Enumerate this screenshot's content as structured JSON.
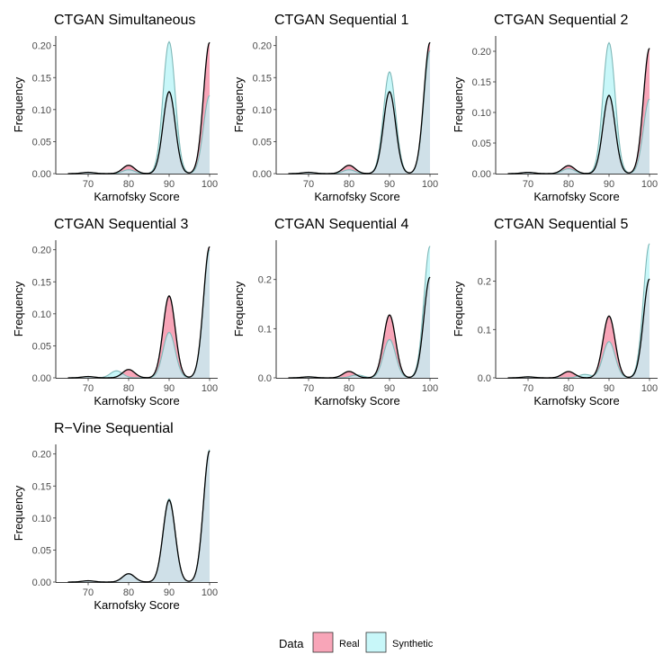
{
  "figure": {
    "legend": {
      "title": "Data",
      "position": "bottom",
      "items": [
        {
          "label": "Real",
          "fill": "#F8A5B8"
        },
        {
          "label": "Synthetic",
          "fill": "#C8F7F9"
        }
      ]
    },
    "colors": {
      "real": "#F8A5B8",
      "synthetic": "#C8F7F9",
      "overlap": "#CFE0E8",
      "line": "#000000",
      "synthetic_line": "#7FB8B8"
    }
  },
  "chart_data": [
    {
      "type": "area",
      "title": "CTGAN Simultaneous",
      "xlabel": "Karnofsky Score",
      "ylabel": "Frequency",
      "xlim": [
        62,
        102
      ],
      "xticks": [
        70,
        80,
        90,
        100
      ],
      "ylim": [
        0,
        0.215
      ],
      "yticks": [
        "0.00",
        "0.05",
        "0.10",
        "0.15",
        "0.20"
      ],
      "series": [
        {
          "name": "Real",
          "peaks": [
            [
              70,
              0.002
            ],
            [
              80,
              0.013
            ],
            [
              90,
              0.128
            ],
            [
              100,
              0.205
            ]
          ]
        },
        {
          "name": "Synthetic",
          "peaks": [
            [
              70,
              0.002
            ],
            [
              80,
              0.006
            ],
            [
              90,
              0.206
            ],
            [
              100,
              0.122
            ]
          ]
        }
      ]
    },
    {
      "type": "area",
      "title": "CTGAN Sequential 1",
      "xlabel": "Karnofsky Score",
      "ylabel": "Frequency",
      "xlim": [
        62,
        102
      ],
      "xticks": [
        70,
        80,
        90,
        100
      ],
      "ylim": [
        0,
        0.215
      ],
      "yticks": [
        "0.00",
        "0.05",
        "0.10",
        "0.15",
        "0.20"
      ],
      "series": [
        {
          "name": "Real",
          "peaks": [
            [
              70,
              0.002
            ],
            [
              80,
              0.013
            ],
            [
              90,
              0.128
            ],
            [
              100,
              0.205
            ]
          ]
        },
        {
          "name": "Synthetic",
          "peaks": [
            [
              70,
              0.002
            ],
            [
              80,
              0.006
            ],
            [
              90,
              0.159
            ],
            [
              100,
              0.192
            ]
          ]
        }
      ]
    },
    {
      "type": "area",
      "title": "CTGAN Sequential 2",
      "xlabel": "Karnofsky Score",
      "ylabel": "Frequency",
      "xlim": [
        62,
        102
      ],
      "xticks": [
        70,
        80,
        90,
        100
      ],
      "ylim": [
        0,
        0.225
      ],
      "yticks": [
        "0.00",
        "0.05",
        "0.10",
        "0.15",
        "0.20"
      ],
      "series": [
        {
          "name": "Real",
          "peaks": [
            [
              70,
              0.002
            ],
            [
              80,
              0.013
            ],
            [
              90,
              0.128
            ],
            [
              100,
              0.205
            ]
          ]
        },
        {
          "name": "Synthetic",
          "peaks": [
            [
              70,
              0.002
            ],
            [
              80,
              0.008
            ],
            [
              90,
              0.214
            ],
            [
              100,
              0.122
            ]
          ]
        }
      ]
    },
    {
      "type": "area",
      "title": "CTGAN Sequential 3",
      "xlabel": "Karnofsky Score",
      "ylabel": "Frequency",
      "xlim": [
        62,
        102
      ],
      "xticks": [
        70,
        80,
        90,
        100
      ],
      "ylim": [
        0,
        0.215
      ],
      "yticks": [
        "0.00",
        "0.05",
        "0.10",
        "0.15",
        "0.20"
      ],
      "series": [
        {
          "name": "Real",
          "peaks": [
            [
              70,
              0.002
            ],
            [
              80,
              0.013
            ],
            [
              90,
              0.128
            ],
            [
              100,
              0.205
            ]
          ]
        },
        {
          "name": "Synthetic",
          "peaks": [
            [
              70,
              0.002
            ],
            [
              77,
              0.011
            ],
            [
              90,
              0.071
            ],
            [
              100,
              0.2
            ]
          ]
        }
      ]
    },
    {
      "type": "area",
      "title": "CTGAN Sequential 4",
      "xlabel": "Karnofsky Score",
      "ylabel": "Frequency",
      "xlim": [
        62,
        102
      ],
      "xticks": [
        70,
        80,
        90,
        100
      ],
      "ylim": [
        0,
        0.28
      ],
      "yticks": [
        "0.0",
        "0.1",
        "0.2"
      ],
      "series": [
        {
          "name": "Real",
          "peaks": [
            [
              70,
              0.002
            ],
            [
              80,
              0.013
            ],
            [
              90,
              0.128
            ],
            [
              100,
              0.205
            ]
          ]
        },
        {
          "name": "Synthetic",
          "peaks": [
            [
              70,
              0.002
            ],
            [
              82,
              0.006
            ],
            [
              90,
              0.078
            ],
            [
              100,
              0.268
            ]
          ]
        }
      ]
    },
    {
      "type": "area",
      "title": "CTGAN Sequential 5",
      "xlabel": "Karnofsky Score",
      "ylabel": "Frequency",
      "xlim": [
        62,
        102
      ],
      "xticks": [
        70,
        80,
        90,
        100
      ],
      "ylim": [
        0,
        0.285
      ],
      "yticks": [
        "0.0",
        "0.1",
        "0.2"
      ],
      "series": [
        {
          "name": "Real",
          "peaks": [
            [
              70,
              0.002
            ],
            [
              80,
              0.013
            ],
            [
              90,
              0.128
            ],
            [
              100,
              0.205
            ]
          ]
        },
        {
          "name": "Synthetic",
          "peaks": [
            [
              70,
              0.002
            ],
            [
              84,
              0.007
            ],
            [
              90,
              0.075
            ],
            [
              100,
              0.278
            ]
          ]
        }
      ]
    },
    {
      "type": "area",
      "title": "R−Vine Sequential",
      "xlabel": "Karnofsky Score",
      "ylabel": "Frequency",
      "xlim": [
        62,
        102
      ],
      "xticks": [
        70,
        80,
        90,
        100
      ],
      "ylim": [
        0,
        0.215
      ],
      "yticks": [
        "0.00",
        "0.05",
        "0.10",
        "0.15",
        "0.20"
      ],
      "series": [
        {
          "name": "Real",
          "peaks": [
            [
              70,
              0.002
            ],
            [
              80,
              0.013
            ],
            [
              90,
              0.128
            ],
            [
              100,
              0.205
            ]
          ]
        },
        {
          "name": "Synthetic",
          "peaks": [
            [
              70,
              0.002
            ],
            [
              80,
              0.013
            ],
            [
              90,
              0.13
            ],
            [
              100,
              0.207
            ]
          ]
        }
      ]
    }
  ]
}
